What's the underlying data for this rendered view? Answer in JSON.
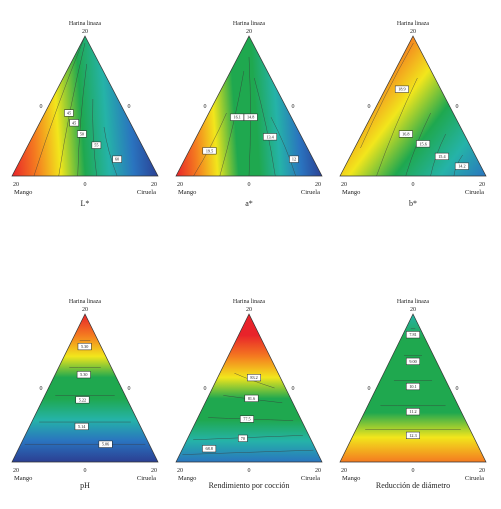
{
  "colors": {
    "red": "#e8232a",
    "orange": "#f47a20",
    "yellow": "#f2e61c",
    "green": "#1fa84f",
    "teal": "#25b3a8",
    "blue": "#2a74bf",
    "navy": "#2b3f93"
  },
  "chart_data": [
    {
      "type": "ternary-contour",
      "title": "L*",
      "apex_top": "Harina linaza",
      "corner_left": "Mango",
      "corner_right": "Ciruela",
      "ticks": {
        "top": "20",
        "left_edge": "0",
        "right_edge": "0",
        "bottom_left": "20",
        "bottom_mid": "0",
        "bottom_right": "20"
      },
      "gradient": [
        "#e8232a",
        "#f47a20",
        "#f2e61c",
        "#1fa84f",
        "#25b3a8",
        "#2a74bf",
        "#2b3f93"
      ],
      "contour_labels": [
        "45",
        "45",
        "50",
        "55",
        "60"
      ]
    },
    {
      "type": "ternary-contour",
      "title": "a*",
      "apex_top": "Harina linaza",
      "corner_left": "Mango",
      "corner_right": "Ciruela",
      "ticks": {
        "top": "20",
        "left_edge": "0",
        "right_edge": "0",
        "bottom_left": "20",
        "bottom_mid": "0",
        "bottom_right": "20"
      },
      "gradient": [
        "#e8232a",
        "#f47a20",
        "#f2e61c",
        "#1fa84f",
        "#1fa84f",
        "#25b3a8",
        "#2a74bf",
        "#2b3f93"
      ],
      "contour_labels": [
        "19.5",
        "16.1",
        "14.8",
        "13.4",
        "12"
      ]
    },
    {
      "type": "ternary-contour",
      "title": "b*",
      "apex_top": "Harina linaza",
      "corner_left": "Mango",
      "corner_right": "Ciruela",
      "ticks": {
        "top": "20",
        "left_edge": "0",
        "right_edge": "0",
        "bottom_left": "20",
        "bottom_mid": "0",
        "bottom_right": "20"
      },
      "gradient": [
        "#e8232a",
        "#f47a20",
        "#f2e61c",
        "#1fa84f",
        "#25b3a8",
        "#2a74bf"
      ],
      "contour_labels": [
        "18.9",
        "16.8",
        "15.6",
        "15.4",
        "14.2"
      ]
    },
    {
      "type": "ternary-contour",
      "title": "pH",
      "apex_top": "Harina linaza",
      "corner_left": "Mango",
      "corner_right": "Ciruela",
      "ticks": {
        "top": "20",
        "left_edge": "0",
        "right_edge": "0",
        "bottom_left": "20",
        "bottom_mid": "0",
        "bottom_right": "20"
      },
      "gradient_vertical": [
        "#e8232a",
        "#f47a20",
        "#f2e61c",
        "#1fa84f",
        "#1fa84f",
        "#25b3a8",
        "#2a74bf",
        "#2b3f93"
      ],
      "contour_labels": [
        "5.30",
        "5.30",
        "5.22",
        "5.14",
        "5.06"
      ]
    },
    {
      "type": "ternary-contour",
      "title": "Rendimiento por cocción",
      "apex_top": "Harina linaza",
      "corner_left": "Mango",
      "corner_right": "Ciruela",
      "ticks": {
        "top": "20",
        "left_edge": "0",
        "right_edge": "0",
        "bottom_left": "20",
        "bottom_mid": "0",
        "bottom_right": "20"
      },
      "gradient_vertical": [
        "#e8232a",
        "#e8232a",
        "#f47a20",
        "#f2e61c",
        "#1fa84f",
        "#1fa84f",
        "#25b3a8",
        "#2a74bf"
      ],
      "contour_labels": [
        "83.2",
        "81.6",
        "77.5",
        "70",
        "68.8"
      ]
    },
    {
      "type": "ternary-contour",
      "title": "Reducción de diámetro",
      "apex_top": "Harina linaza",
      "corner_left": "Mango",
      "corner_right": "Ciruela",
      "ticks": {
        "top": "20",
        "left_edge": "0",
        "right_edge": "0",
        "bottom_left": "20",
        "bottom_mid": "0",
        "bottom_right": "20"
      },
      "gradient_vertical": [
        "#25b3a8",
        "#1fa84f",
        "#1fa84f",
        "#1fa84f",
        "#1fa84f",
        "#f2e61c",
        "#f47a20"
      ],
      "contour_labels": [
        "7.81",
        "9.00",
        "10.1",
        "11.2",
        "12.3"
      ]
    }
  ]
}
